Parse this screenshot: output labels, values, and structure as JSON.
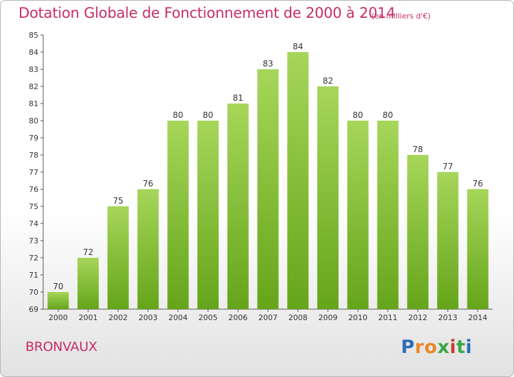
{
  "header": {
    "title": "Dotation Globale de Fonctionnement de 2000 à 2014",
    "unit": "(en milliers d'€)"
  },
  "footer": {
    "commune": "BRONVAUX",
    "logo_letters": [
      "P",
      "r",
      "o",
      "x",
      "i",
      "t",
      "i"
    ],
    "logo_colors": [
      "#2d6db5",
      "#e8892a",
      "#e8892a",
      "#3aa645",
      "#cc3b3b",
      "#3aa645",
      "#2d6db5"
    ]
  },
  "colors": {
    "title": "#c72d68",
    "bar_top": "#a6d65a",
    "bar_bottom": "#65a51a",
    "axis_text": "#333333"
  },
  "chart_data": {
    "type": "bar",
    "title": "Dotation Globale de Fonctionnement de 2000 à 2014",
    "categories": [
      "2000",
      "2001",
      "2002",
      "2003",
      "2004",
      "2005",
      "2006",
      "2007",
      "2008",
      "2009",
      "2010",
      "2011",
      "2012",
      "2013",
      "2014"
    ],
    "values": [
      70,
      72,
      75,
      76,
      80,
      80,
      81,
      83,
      84,
      82,
      80,
      80,
      78,
      77,
      76
    ],
    "ylim": [
      69,
      85
    ],
    "yticks": [
      69,
      70,
      71,
      72,
      73,
      74,
      75,
      76,
      77,
      78,
      79,
      80,
      81,
      82,
      83,
      84,
      85
    ],
    "grid": false,
    "legend": "none"
  }
}
